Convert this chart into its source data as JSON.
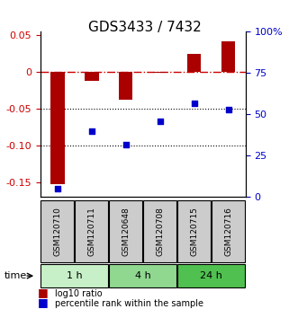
{
  "title": "GDS3433 / 7432",
  "samples": [
    "GSM120710",
    "GSM120711",
    "GSM120648",
    "GSM120708",
    "GSM120715",
    "GSM120716"
  ],
  "log10_ratio": [
    -0.152,
    -0.012,
    -0.038,
    -0.001,
    0.025,
    0.042
  ],
  "percentile_rank": [
    5,
    40,
    32,
    46,
    57,
    53
  ],
  "time_groups": [
    {
      "label": "1 h",
      "samples_count": 2,
      "color": "#c8f0c8"
    },
    {
      "label": "4 h",
      "samples_count": 2,
      "color": "#90d890"
    },
    {
      "label": "24 h",
      "samples_count": 2,
      "color": "#50c050"
    }
  ],
  "ylim_left": [
    -0.17,
    0.055
  ],
  "ylim_right": [
    0,
    100
  ],
  "yticks_left": [
    -0.15,
    -0.1,
    -0.05,
    0.0,
    0.05
  ],
  "ytick_labels_left": [
    "-0.15",
    "-0.10",
    "-0.05",
    "0",
    "0.05"
  ],
  "yticks_right": [
    0,
    25,
    50,
    75,
    100
  ],
  "ytick_labels_right": [
    "0",
    "25",
    "50",
    "75",
    "100%"
  ],
  "bar_color": "#aa0000",
  "dot_color": "#0000cc",
  "hline_color": "#cc0000",
  "dotline_values": [
    -0.05,
    -0.1
  ],
  "bar_width": 0.4,
  "sample_box_color": "#cccccc",
  "title_fontsize": 11,
  "tick_fontsize": 8,
  "label_fontsize": 8
}
